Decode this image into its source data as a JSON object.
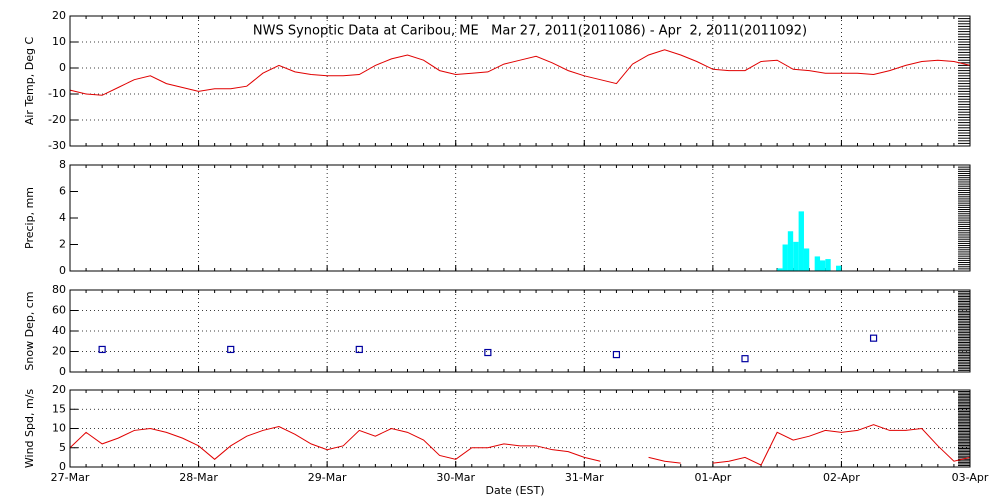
{
  "chart_data": [
    {
      "type": "line",
      "title": "NWS Synoptic Data at Caribou, ME   Mar 27, 2011(2011086) - Apr  2, 2011(2011092)",
      "y_label": "Air Temp, Deg C",
      "ylim": [
        -30,
        20
      ],
      "yticks": [
        -30,
        -20,
        -10,
        0,
        10,
        20
      ],
      "grid": "both",
      "x": [
        0,
        0.125,
        0.25,
        0.375,
        0.5,
        0.625,
        0.75,
        0.875,
        1,
        1.125,
        1.25,
        1.375,
        1.5,
        1.625,
        1.75,
        1.875,
        2,
        2.125,
        2.25,
        2.375,
        2.5,
        2.625,
        2.75,
        2.875,
        3,
        3.125,
        3.25,
        3.375,
        3.5,
        3.625,
        3.75,
        3.875,
        4,
        4.125,
        4.25,
        4.375,
        4.5,
        4.625,
        4.75,
        4.875,
        5,
        5.125,
        5.25,
        5.375,
        5.5,
        5.625,
        5.75,
        5.875,
        6,
        6.125,
        6.25,
        6.375,
        6.5,
        6.625,
        6.75,
        6.875,
        7
      ],
      "series": [
        {
          "color": "#e00000",
          "values": [
            -8.5,
            -10,
            -10.5,
            -7.5,
            -4.5,
            -3,
            -6,
            -7.5,
            -9,
            -8,
            -8,
            -7,
            -2,
            1,
            -1.5,
            -2.5,
            -3,
            -3,
            -2.5,
            1,
            3.5,
            5,
            3,
            -1,
            -2.5,
            -2,
            -1.5,
            1.5,
            3,
            4.5,
            2,
            -1,
            -3,
            -4.5,
            -6,
            1.5,
            5,
            7,
            5,
            2.5,
            -0.5,
            -1,
            -1,
            2.5,
            3,
            -0.5,
            -1,
            -2,
            -2,
            -2,
            -2.5,
            -1,
            1,
            2.5,
            3,
            2.5,
            1
          ]
        }
      ]
    },
    {
      "type": "bar",
      "y_label": "Precip, mm",
      "ylim": [
        0,
        8
      ],
      "yticks": [
        0,
        2,
        4,
        6,
        8
      ],
      "grid": "x",
      "x": [
        5.5,
        5.542,
        5.583,
        5.625,
        5.667,
        5.708,
        5.75,
        5.792,
        5.833,
        5.875,
        5.917,
        5.958
      ],
      "series": [
        {
          "color": "#00ffff",
          "values": [
            0.2,
            2,
            3,
            2.2,
            4.5,
            1.7,
            0,
            1.1,
            0.8,
            0.9,
            0,
            0.4
          ]
        }
      ]
    },
    {
      "type": "scatter",
      "y_label": "Snow Dep, cm",
      "ylim": [
        0,
        80
      ],
      "yticks": [
        0,
        20,
        40,
        60,
        80
      ],
      "grid": "both",
      "x": [
        0.25,
        1.25,
        2.25,
        3.25,
        4.25,
        5.25,
        6.25
      ],
      "series": [
        {
          "color": "#0000a0",
          "values": [
            22,
            22,
            22,
            19,
            17,
            13,
            33
          ]
        }
      ]
    },
    {
      "type": "line",
      "y_label": "Wind Spd, m/s",
      "x_label": "Date (EST)",
      "ylim": [
        0,
        20
      ],
      "yticks": [
        0,
        5,
        10,
        15,
        20
      ],
      "grid": "both",
      "xlim": [
        0,
        7
      ],
      "xticks": [
        {
          "value": 0,
          "label": "27-Mar"
        },
        {
          "value": 1,
          "label": "28-Mar"
        },
        {
          "value": 2,
          "label": "29-Mar"
        },
        {
          "value": 3,
          "label": "30-Mar"
        },
        {
          "value": 4,
          "label": "31-Mar"
        },
        {
          "value": 5,
          "label": "01-Apr"
        },
        {
          "value": 6,
          "label": "02-Apr"
        },
        {
          "value": 7,
          "label": "03-Apr"
        }
      ],
      "x": [
        0,
        0.125,
        0.25,
        0.375,
        0.5,
        0.625,
        0.75,
        0.875,
        1,
        1.125,
        1.25,
        1.375,
        1.5,
        1.625,
        1.75,
        1.875,
        2,
        2.125,
        2.25,
        2.375,
        2.5,
        2.625,
        2.75,
        2.875,
        3,
        3.125,
        3.25,
        3.375,
        3.5,
        3.625,
        3.75,
        3.875,
        4,
        4.125,
        4.25,
        4.375,
        4.5,
        4.625,
        4.75,
        4.875,
        5,
        5.125,
        5.25,
        5.375,
        5.5,
        5.625,
        5.75,
        5.875,
        6,
        6.125,
        6.25,
        6.375,
        6.5,
        6.625,
        6.75,
        6.875,
        7
      ],
      "series": [
        {
          "color": "#e00000",
          "values": [
            5,
            9,
            6,
            7.5,
            9.5,
            10,
            9,
            7.5,
            5.5,
            2,
            5.5,
            8,
            9.5,
            10.5,
            8.5,
            6,
            4.5,
            5.5,
            9.5,
            8,
            10,
            9,
            7,
            3,
            2,
            5,
            5,
            6,
            5.5,
            5.5,
            4.5,
            4,
            2.5,
            1.5,
            null,
            null,
            2.5,
            1.5,
            1,
            null,
            1,
            1.5,
            2.5,
            0.5,
            9,
            7,
            8,
            9.5,
            9,
            9.5,
            11,
            9.5,
            9.5,
            10,
            5.5,
            1.5,
            2.5
          ]
        }
      ]
    }
  ]
}
